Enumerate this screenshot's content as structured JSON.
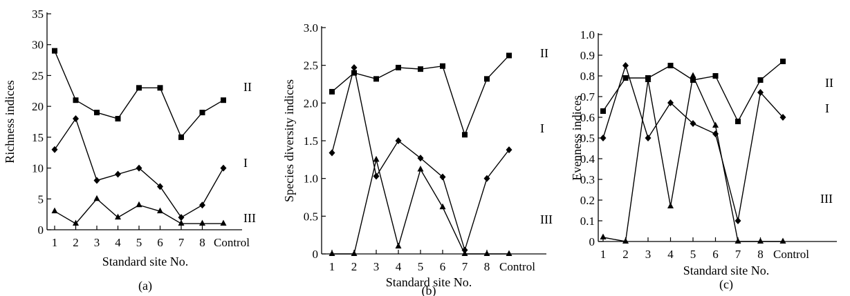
{
  "chart_data": [
    {
      "type": "line",
      "panel_label": "(a)",
      "xlabel": "Standard site No.",
      "ylabel": "Richness indices",
      "categories": [
        "1",
        "2",
        "3",
        "4",
        "5",
        "6",
        "7",
        "8",
        "Control"
      ],
      "ylim": [
        0,
        35
      ],
      "yticks": [
        "0",
        "5",
        "10",
        "15",
        "20",
        "25",
        "30",
        "35"
      ],
      "series": [
        {
          "name": "II",
          "marker": "square",
          "values": [
            29,
            21,
            19,
            18,
            23,
            23,
            15,
            19,
            21
          ]
        },
        {
          "name": "I",
          "marker": "diamond",
          "values": [
            13,
            18,
            8,
            9,
            10,
            7,
            2,
            4,
            10
          ]
        },
        {
          "name": "III",
          "marker": "triangle",
          "values": [
            3,
            1,
            5,
            2,
            4,
            3,
            1,
            1,
            1
          ]
        }
      ]
    },
    {
      "type": "line",
      "panel_label": "(b)",
      "xlabel": "Standard site No.",
      "ylabel": "Species diversity indices",
      "categories": [
        "1",
        "2",
        "3",
        "4",
        "5",
        "6",
        "7",
        "8",
        "Control"
      ],
      "ylim": [
        0,
        3.0
      ],
      "yticks": [
        "0",
        "0.5",
        "1.0",
        "1.5",
        "2.0",
        "2.5",
        "3.0"
      ],
      "series": [
        {
          "name": "II",
          "marker": "square",
          "values": [
            2.15,
            2.4,
            2.32,
            2.47,
            2.45,
            2.49,
            1.58,
            2.32,
            2.63
          ]
        },
        {
          "name": "I",
          "marker": "diamond",
          "values": [
            1.34,
            2.47,
            1.03,
            1.5,
            1.27,
            1.02,
            0.05,
            1.0,
            1.38
          ]
        },
        {
          "name": "III",
          "marker": "triangle",
          "values": [
            0,
            0,
            1.25,
            0.1,
            1.12,
            0.62,
            0,
            0,
            0
          ]
        }
      ]
    },
    {
      "type": "line",
      "panel_label": "(c)",
      "xlabel": "Standard site No.",
      "ylabel": "Evenness indices",
      "categories": [
        "1",
        "2",
        "3",
        "4",
        "5",
        "6",
        "7",
        "8",
        "Control"
      ],
      "ylim": [
        0,
        1.0
      ],
      "yticks": [
        "0",
        "0.1",
        "0.2",
        "0.3",
        "0.4",
        "0.5",
        "0.6",
        "0.7",
        "0.8",
        "0.9",
        "1.0"
      ],
      "series": [
        {
          "name": "II",
          "marker": "square",
          "values": [
            0.63,
            0.79,
            0.79,
            0.85,
            0.78,
            0.8,
            0.58,
            0.78,
            0.87
          ]
        },
        {
          "name": "I",
          "marker": "diamond",
          "values": [
            0.5,
            0.85,
            0.5,
            0.67,
            0.57,
            0.52,
            0.1,
            0.72,
            0.6
          ]
        },
        {
          "name": "III",
          "marker": "triangle",
          "values": [
            0.02,
            0,
            0.78,
            0.17,
            0.8,
            0.56,
            0,
            0,
            0
          ]
        }
      ]
    }
  ]
}
